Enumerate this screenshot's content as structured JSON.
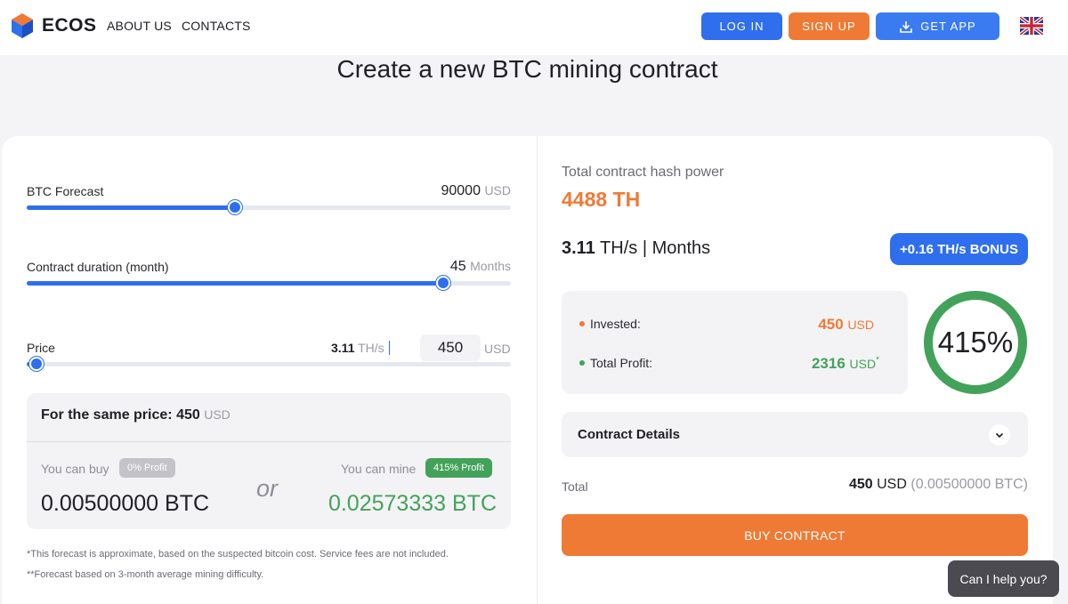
{
  "header": {
    "logo_text": "ECOS",
    "nav": [
      "ABOUT US",
      "CONTACTS"
    ],
    "login_label": "LOG IN",
    "signup_label": "SIGN UP",
    "getapp_label": "GET APP",
    "language_icon": "uk-flag-icon"
  },
  "page_title": "Create a new BTC mining contract",
  "left": {
    "forecast": {
      "label": "BTC Forecast",
      "value": "90000",
      "unit": "USD",
      "slider_fraction": 0.43
    },
    "duration": {
      "label": "Contract duration (month)",
      "value": "45",
      "unit": "Months",
      "slider_fraction": 0.86
    },
    "price": {
      "label": "Price",
      "ths_value": "3.11",
      "ths_unit": "TH/s",
      "input_value": "450",
      "unit": "USD",
      "slider_fraction": 0.02
    },
    "same_price": {
      "title": "For the same price:",
      "title_value": "450",
      "title_unit": "USD",
      "buy_label": "You can buy",
      "buy_badge": "0% Profit",
      "buy_value": "0.00500000",
      "buy_unit": "BTC",
      "or_text": "or",
      "mine_label": "You can mine",
      "mine_badge": "415% Profit",
      "mine_value": "0.02573333",
      "mine_unit": "BTC"
    },
    "footnote_1": "*This forecast is approximate, based on the suspected bitcoin cost. Service fees are not included.",
    "footnote_2": "**Forecast based on 3-month average mining difficulty."
  },
  "right": {
    "hash_label": "Total contract hash power",
    "hash_value": "4488 TH",
    "rate_value": "3.11",
    "rate_unit": "TH/s",
    "rate_sep": "|",
    "rate_period": "Months",
    "bonus_label": "+0.16 TH/s BONUS",
    "invested_label": "Invested:",
    "invested_value": "450",
    "invested_unit": "USD",
    "profit_label": "Total Profit:",
    "profit_value": "2316",
    "profit_unit": "USD",
    "profit_mark": "*",
    "ring_label": "415%",
    "ring_fraction": 1.0,
    "details_label": "Contract Details",
    "total_label": "Total",
    "total_value": "450",
    "total_unit": "USD",
    "total_btc": "(0.00500000 BTC)",
    "buy_button": "BUY CONTRACT"
  },
  "help_label": "Can I help you?",
  "colors": {
    "accent_blue": "#2f6fee",
    "accent_orange": "#ef7a35",
    "profit_green": "#43a25a"
  }
}
